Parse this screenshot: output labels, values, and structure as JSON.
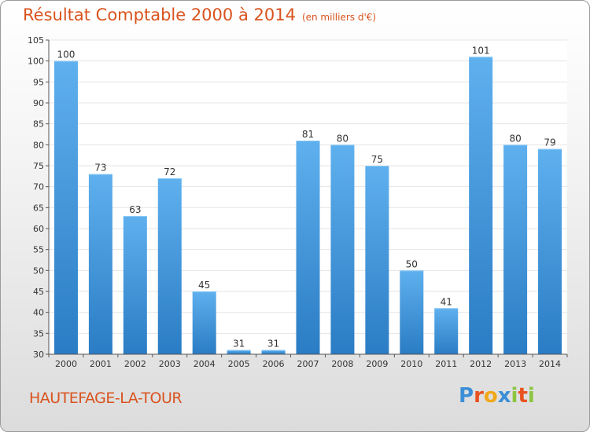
{
  "header": {
    "title": "Résultat Comptable 2000 à 2014",
    "subtitle": "(en milliers d'€)"
  },
  "footer": {
    "commune": "HAUTEFAGE-LA-TOUR",
    "brand_letters": [
      "P",
      "r",
      "o",
      "x",
      "i",
      "t",
      "i"
    ],
    "brand_colors": [
      "#3b8fd6",
      "#e8531f",
      "#f0a818",
      "#3b8fd6",
      "#8bc53f",
      "#e8531f",
      "#8bc53f"
    ]
  },
  "colors": {
    "bar_top": "#5fb0ee",
    "bar_bottom": "#2a7cc4",
    "title": "#d9531e",
    "grid": "#e4e4e4"
  },
  "chart_data": {
    "type": "bar",
    "title": "Résultat Comptable 2000 à 2014",
    "subtitle": "(en milliers d'€)",
    "xlabel": "",
    "ylabel": "",
    "categories": [
      "2000",
      "2001",
      "2002",
      "2003",
      "2004",
      "2005",
      "2006",
      "2007",
      "2008",
      "2009",
      "2010",
      "2011",
      "2012",
      "2013",
      "2014"
    ],
    "values": [
      100,
      73,
      63,
      72,
      45,
      31,
      31,
      81,
      80,
      75,
      50,
      41,
      101,
      80,
      79
    ],
    "ylim": [
      30,
      105
    ],
    "yticks": [
      30,
      35,
      40,
      45,
      50,
      55,
      60,
      65,
      70,
      75,
      80,
      85,
      90,
      95,
      100,
      105
    ],
    "grid": true,
    "data_labels": true
  }
}
